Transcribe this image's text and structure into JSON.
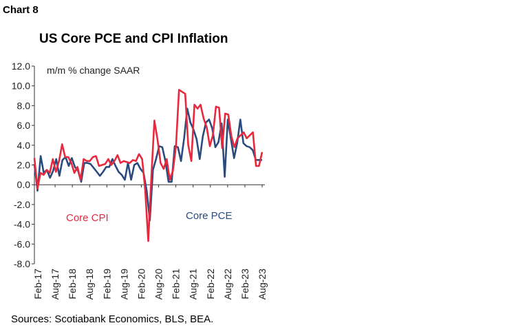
{
  "header": {
    "chart_label": "Chart 8",
    "title": "US Core PCE and CPI Inflation"
  },
  "footer": {
    "source": "Sources: Scotiabank Economics, BLS, BEA."
  },
  "colors": {
    "cpi": "#e8283c",
    "pce": "#2b4a7e",
    "axis": "#333333"
  },
  "chart_data": {
    "type": "line",
    "title": "US Core PCE and CPI Inflation",
    "ylabel": "m/m % change SAAR",
    "xlabel": "",
    "ylim": [
      -8,
      12
    ],
    "y_ticks": [
      "12.0",
      "10.0",
      "8.0",
      "6.0",
      "4.0",
      "2.0",
      "0.0",
      "-2.0",
      "-4.0",
      "-6.0",
      "-8.0"
    ],
    "x_tick_labels": [
      "Feb-17",
      "Aug-17",
      "Feb-18",
      "Aug-18",
      "Feb-19",
      "Aug-19",
      "Feb-20",
      "Aug-20",
      "Feb-21",
      "Aug-21",
      "Feb-22",
      "Aug-22",
      "Feb-23",
      "Aug-23"
    ],
    "x_range": [
      "Feb-17",
      "Aug-23"
    ],
    "grid": false,
    "legend": "inline labels",
    "annotations": {
      "cpi": "Core CPI",
      "pce": "Core PCE"
    },
    "series": [
      {
        "name": "Core CPI",
        "values": [
          2.7,
          -0.4,
          1.2,
          1.0,
          1.5,
          1.2,
          2.6,
          1.3,
          2.4,
          4.1,
          2.8,
          2.8,
          2.2,
          1.2,
          1.8,
          0.5,
          2.6,
          2.4,
          2.4,
          2.8,
          2.9,
          1.9,
          2.0,
          2.1,
          2.6,
          2.0,
          2.4,
          3.0,
          2.2,
          2.4,
          2.3,
          2.2,
          2.5,
          2.4,
          3.1,
          2.6,
          -0.5,
          -5.7,
          0.8,
          6.5,
          4.6,
          2.2,
          1.6,
          2.6,
          0.5,
          1.4,
          3.9,
          9.6,
          9.4,
          9.2,
          4.0,
          2.4,
          8.1,
          7.7,
          8.1,
          6.7,
          5.8,
          3.9,
          5.0,
          7.9,
          7.8,
          3.7,
          7.2,
          7.1,
          4.9,
          3.8,
          4.7,
          5.0,
          5.3,
          4.7,
          5.0,
          5.3,
          1.9,
          1.9,
          3.3
        ]
      },
      {
        "name": "Core PCE",
        "values": [
          2.1,
          -0.6,
          2.9,
          1.2,
          1.5,
          0.7,
          1.4,
          2.6,
          0.9,
          2.5,
          2.8,
          1.9,
          2.7,
          1.8,
          1.4,
          0.3,
          2.2,
          2.2,
          2.1,
          1.7,
          1.3,
          0.9,
          1.3,
          1.8,
          1.8,
          2.6,
          1.9,
          1.3,
          1.0,
          0.5,
          2.2,
          0.5,
          2.0,
          2.2,
          1.6,
          1.2,
          -0.6,
          -3.6,
          1.5,
          2.6,
          3.9,
          3.8,
          2.4,
          0.3,
          0.3,
          3.9,
          3.8,
          2.4,
          4.7,
          7.7,
          6.3,
          5.6,
          4.6,
          2.6,
          4.9,
          6.3,
          6.6,
          5.7,
          3.8,
          4.3,
          6.2,
          0.8,
          6.6,
          4.6,
          2.7,
          4.2,
          6.6,
          4.2,
          3.9,
          3.8,
          3.5,
          2.5,
          2.5,
          2.5
        ]
      }
    ]
  }
}
